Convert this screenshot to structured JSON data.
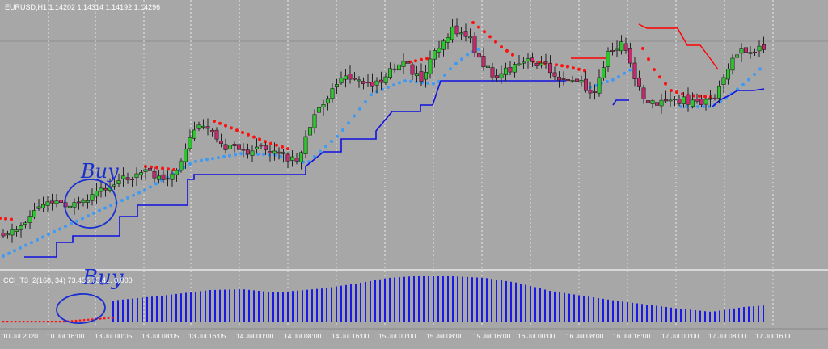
{
  "main_chart": {
    "symbol_label": "EURUSD,H1  1.14202 1.14314 1.14192 1.14296"
  },
  "indicator_panel": {
    "label": "CCI_T3_2(168, 34) 73.455 73.4... 0.000"
  },
  "annotations": [
    "Buy",
    "Buy"
  ],
  "time_axis": {
    "ticks": [
      "10 Jul 2020",
      "10 Jul 16:00",
      "13 Jul 00:05",
      "13 Jul 08:05",
      "13 Jul 16:05",
      "14 Jul 00:00",
      "14 Jul 08:00",
      "14 Jul 16:00",
      "15 Jul 00:00",
      "15 Jul 08:00",
      "15 Jul 16:00",
      "16 Jul 00:00",
      "16 Jul 08:00",
      "16 Jul 16:00",
      "17 Jul 00:00",
      "17 Jul 08:00",
      "17 Jul 16:00"
    ]
  },
  "colors": {
    "background": "#a7a7a7",
    "bull_candle": "#2ec52e",
    "bear_candle": "#c8286e",
    "dots_up": "#3e9af5",
    "dots_down": "#ff1010",
    "support_line": "#1010e0",
    "resistance_line": "#ff0000",
    "histogram": "#1a1ae6",
    "annotation_ink": "#1a2fd0"
  },
  "chart_data": {
    "type": "candlestick",
    "indicators": [
      "candles",
      "trailing-dots",
      "stop-lines",
      "histogram"
    ]
  }
}
